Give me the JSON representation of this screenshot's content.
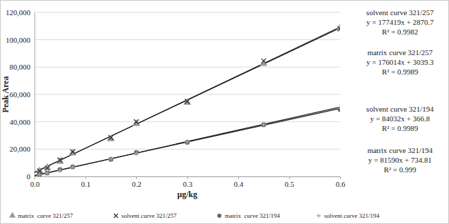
{
  "chart_data": {
    "type": "scatter",
    "x_label": "µg/kg",
    "y_label": "Peak Area",
    "x": [
      0.01,
      0.025,
      0.05,
      0.075,
      0.15,
      0.2,
      0.3,
      0.45,
      0.6
    ],
    "xlim": [
      0,
      0.6
    ],
    "xticks": [
      {
        "value": 0,
        "label": "0.0"
      },
      0.1,
      0.2,
      0.3,
      0.4,
      0.5,
      0.6
    ],
    "ylim": [
      0,
      120000
    ],
    "yticks": [
      0,
      {
        "value": 20000,
        "label": "20,000"
      },
      {
        "value": 40000,
        "label": "40,000"
      },
      {
        "value": 60000,
        "label": "60,000"
      },
      {
        "value": 80000,
        "label": "80,000"
      },
      {
        "value": 100000,
        "label": "100,000"
      },
      {
        "value": 120000,
        "label": "120,000"
      }
    ],
    "grid": true,
    "legend": "bottom",
    "series": [
      {
        "name": "matrix  curve 321/257",
        "color": "#9a9a9a",
        "marker": "triangle",
        "values": [
          4000,
          6500,
          11000,
          17000,
          27500,
          38500,
          54000,
          82500,
          108500
        ],
        "trendline": {
          "slope": 176014,
          "intercept": 3039.3
        }
      },
      {
        "name": "solvent curve 321/257",
        "color": "#333333",
        "marker": "x",
        "values": [
          4000,
          6000,
          12000,
          18000,
          28500,
          40000,
          55000,
          84500,
          108000
        ],
        "trendline": {
          "slope": 177419,
          "intercept": 2870.7
        }
      },
      {
        "name": "matrix  curve 321/194",
        "color": "#666666",
        "marker": "circle",
        "values": [
          1500,
          2500,
          5000,
          7000,
          12500,
          17500,
          25000,
          37800,
          49000
        ],
        "trendline": {
          "slope": 81590,
          "intercept": 734.81
        }
      },
      {
        "name": "solvent curve 321/194",
        "color": "#aaaaaa",
        "marker": "plus",
        "values": [
          1200,
          2400,
          4500,
          6800,
          12800,
          17000,
          25300,
          38000,
          50500
        ],
        "trendline": {
          "slope": 84032,
          "intercept": 366.8
        }
      }
    ],
    "annotations": [
      [
        "solvent curve 321/257",
        "y = 177419x + 2870.7",
        "R² = 0.9982"
      ],
      [
        "matrix curve 321/257",
        "y = 176014x + 3039.3",
        "R² = 0.9989"
      ],
      [
        "solvent curve 321/194",
        "y = 84032x + 366.8",
        "R² = 0.9989"
      ],
      [
        "matrix curve 321/194",
        "y = 81590x + 734.81",
        "R² = 0.999"
      ]
    ]
  }
}
